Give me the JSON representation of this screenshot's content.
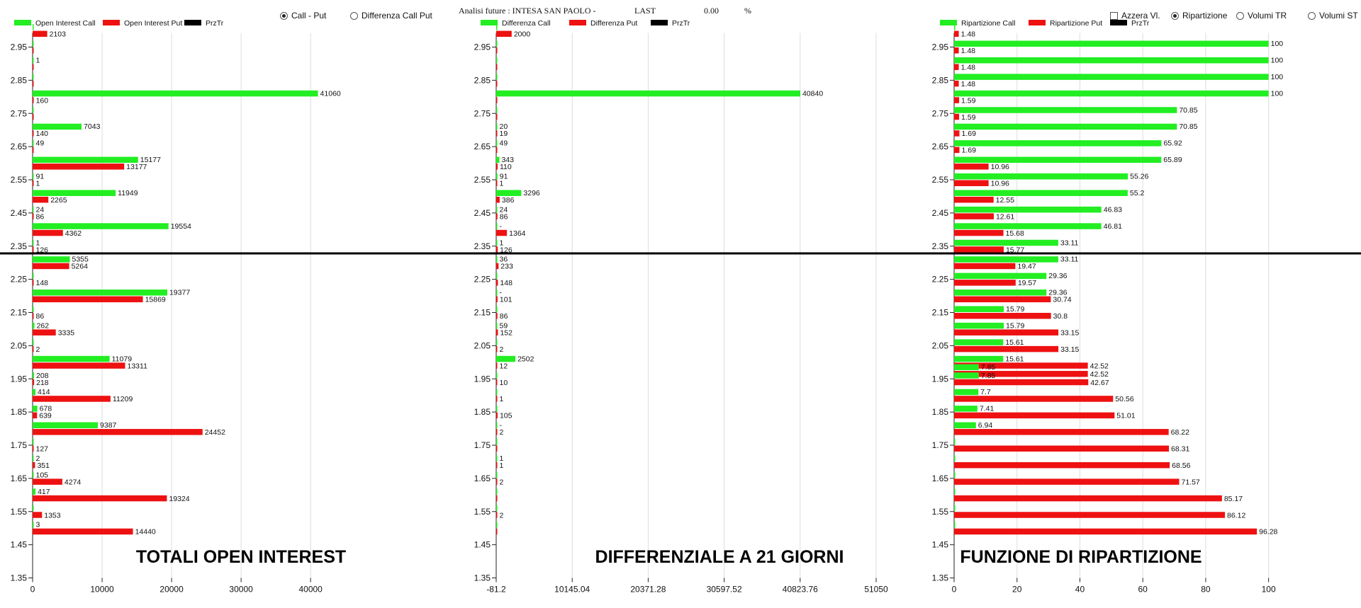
{
  "header": {
    "title": "Analisi future : INTESA SAN PAOLO -",
    "last_label": "LAST",
    "last_value": "0.00",
    "percent_sign": "%"
  },
  "controls": {
    "radio_call_put": "Call - Put",
    "radio_diff_call_put": "Differenza Call Put",
    "check_azzera": "Azzera Vl.",
    "radio_ripartizione": "Ripartizione",
    "radio_volumi_tr": "Volumi TR",
    "radio_volumi_st": "Volumi ST"
  },
  "colors": {
    "call": "#22ee22",
    "put": "#ee1111",
    "prz": "#000000",
    "grid": "#dddddd",
    "axis": "#222222",
    "divider": "#000000"
  },
  "chart_data": [
    {
      "type": "bar",
      "title": "TOTALI OPEN INTEREST",
      "orientation": "horizontal",
      "legend": [
        "Open Interest Call",
        "Open Interest Put",
        "PrzTr"
      ],
      "y_ticks": [
        "2.95",
        "2.85",
        "2.75",
        "2.65",
        "2.55",
        "2.45",
        "2.35",
        "2.25",
        "2.15",
        "2.05",
        "1.95",
        "1.85",
        "1.75",
        "1.65",
        "1.55",
        "1.45",
        "1.35"
      ],
      "x_ticks": [
        "0",
        "10000",
        "20000",
        "30000",
        "40000"
      ],
      "xlim": [
        0,
        51000
      ],
      "bars": [
        {
          "strike": 3.0,
          "call": 0,
          "put": 2103,
          "call_label": "",
          "put_label": "2103"
        },
        {
          "strike": 2.95,
          "call": 0,
          "put": 0,
          "call_label": "",
          "put_label": ""
        },
        {
          "strike": 2.9,
          "call": 1,
          "put": 0,
          "call_label": "1",
          "put_label": ""
        },
        {
          "strike": 2.85,
          "call": 0,
          "put": 0,
          "call_label": "",
          "put_label": ""
        },
        {
          "strike": 2.8,
          "call": 41060,
          "put": 160,
          "call_label": "41060",
          "put_label": "160"
        },
        {
          "strike": 2.75,
          "call": 0,
          "put": 0,
          "call_label": "",
          "put_label": ""
        },
        {
          "strike": 2.7,
          "call": 7043,
          "put": 140,
          "call_label": "7043",
          "put_label": "140"
        },
        {
          "strike": 2.65,
          "call": 49,
          "put": 0,
          "call_label": "49",
          "put_label": ""
        },
        {
          "strike": 2.6,
          "call": 15177,
          "put": 13177,
          "call_label": "15177",
          "put_label": "13177"
        },
        {
          "strike": 2.55,
          "call": 91,
          "put": 1,
          "call_label": "91",
          "put_label": "1"
        },
        {
          "strike": 2.5,
          "call": 11949,
          "put": 2265,
          "call_label": "11949",
          "put_label": "2265"
        },
        {
          "strike": 2.45,
          "call": 24,
          "put": 86,
          "call_label": "24",
          "put_label": "86"
        },
        {
          "strike": 2.4,
          "call": 19554,
          "put": 4362,
          "call_label": "19554",
          "put_label": "4362"
        },
        {
          "strike": 2.35,
          "call": 1,
          "put": 126,
          "call_label": "1",
          "put_label": "126"
        },
        {
          "strike": 2.3,
          "call": 5355,
          "put": 5264,
          "call_label": "5355",
          "put_label": "5264"
        },
        {
          "strike": 2.25,
          "call": 0,
          "put": 148,
          "call_label": "",
          "put_label": "148"
        },
        {
          "strike": 2.2,
          "call": 19377,
          "put": 15869,
          "call_label": "19377",
          "put_label": "15869"
        },
        {
          "strike": 2.15,
          "call": 0,
          "put": 86,
          "call_label": "",
          "put_label": "86"
        },
        {
          "strike": 2.1,
          "call": 262,
          "put": 3335,
          "call_label": "262",
          "put_label": "3335"
        },
        {
          "strike": 2.05,
          "call": 0,
          "put": 2,
          "call_label": "",
          "put_label": "2"
        },
        {
          "strike": 2.0,
          "call": 11079,
          "put": 13311,
          "call_label": "11079",
          "put_label": "13311"
        },
        {
          "strike": 1.95,
          "call": 208,
          "put": 218,
          "call_label": "208",
          "put_label": "218"
        },
        {
          "strike": 1.9,
          "call": 414,
          "put": 11209,
          "call_label": "414",
          "put_label": "11209"
        },
        {
          "strike": 1.85,
          "call": 678,
          "put": 639,
          "call_label": "678",
          "put_label": "639"
        },
        {
          "strike": 1.8,
          "call": 9387,
          "put": 24452,
          "call_label": "9387",
          "put_label": "24452"
        },
        {
          "strike": 1.75,
          "call": 0,
          "put": 127,
          "call_label": "",
          "put_label": "127"
        },
        {
          "strike": 1.7,
          "call": 2,
          "put": 351,
          "call_label": "2",
          "put_label": "351"
        },
        {
          "strike": 1.65,
          "call": 105,
          "put": 4274,
          "call_label": "105",
          "put_label": "4274"
        },
        {
          "strike": 1.6,
          "call": 417,
          "put": 19324,
          "call_label": "417",
          "put_label": "19324"
        },
        {
          "strike": 1.55,
          "call": 0,
          "put": 1353,
          "call_label": "",
          "put_label": "1353"
        },
        {
          "strike": 1.5,
          "call": 3,
          "put": 14440,
          "call_label": "3",
          "put_label": "14440"
        }
      ]
    },
    {
      "type": "bar",
      "title": "DIFFERENZIALE A 21 GIORNI",
      "orientation": "horizontal",
      "legend": [
        "Differenza Call",
        "Differenza Put",
        "PrzTr"
      ],
      "y_ticks": [
        "2.95",
        "2.85",
        "2.75",
        "2.65",
        "2.55",
        "2.45",
        "2.35",
        "2.25",
        "2.15",
        "2.05",
        "1.95",
        "1.85",
        "1.75",
        "1.65",
        "1.55",
        "1.45",
        "1.35"
      ],
      "x_ticks": [
        "-81.2",
        "10145.04",
        "20371.28",
        "30597.52",
        "40823.76",
        "51050"
      ],
      "xlim": [
        -81.2,
        51050
      ],
      "bars": [
        {
          "strike": 3.0,
          "call": 0,
          "put": 2000,
          "call_label": "",
          "put_label": "2000"
        },
        {
          "strike": 2.95,
          "call": 0,
          "put": 0,
          "call_label": "",
          "put_label": ""
        },
        {
          "strike": 2.9,
          "call": 0,
          "put": 0,
          "call_label": "",
          "put_label": ""
        },
        {
          "strike": 2.85,
          "call": 0,
          "put": 0,
          "call_label": "",
          "put_label": ""
        },
        {
          "strike": 2.8,
          "call": 40840,
          "put": 0,
          "call_label": "40840",
          "put_label": ""
        },
        {
          "strike": 2.75,
          "call": 0,
          "put": 0,
          "call_label": "",
          "put_label": ""
        },
        {
          "strike": 2.7,
          "call": 20,
          "put": 19,
          "call_label": "20",
          "put_label": "19"
        },
        {
          "strike": 2.65,
          "call": 49,
          "put": 0,
          "call_label": "49",
          "put_label": ""
        },
        {
          "strike": 2.6,
          "call": 343,
          "put": 110,
          "call_label": "343",
          "put_label": "110"
        },
        {
          "strike": 2.55,
          "call": 91,
          "put": 1,
          "call_label": "91",
          "put_label": "1"
        },
        {
          "strike": 2.5,
          "call": 3296,
          "put": 386,
          "call_label": "3296",
          "put_label": "386"
        },
        {
          "strike": 2.45,
          "call": 24,
          "put": 86,
          "call_label": "24",
          "put_label": "86"
        },
        {
          "strike": 2.4,
          "call": 0,
          "put": 1364,
          "call_label": "-",
          "put_label": "1364"
        },
        {
          "strike": 2.35,
          "call": 1,
          "put": 126,
          "call_label": "1",
          "put_label": "126"
        },
        {
          "strike": 2.3,
          "call": 36,
          "put": 233,
          "call_label": "36",
          "put_label": "233"
        },
        {
          "strike": 2.25,
          "call": 0,
          "put": 148,
          "call_label": "",
          "put_label": "148"
        },
        {
          "strike": 2.2,
          "call": 0,
          "put": 101,
          "call_label": "-",
          "put_label": "101"
        },
        {
          "strike": 2.15,
          "call": 0,
          "put": 86,
          "call_label": "",
          "put_label": "86"
        },
        {
          "strike": 2.1,
          "call": 59,
          "put": 152,
          "call_label": "59",
          "put_label": "152"
        },
        {
          "strike": 2.05,
          "call": 0,
          "put": 2,
          "call_label": "",
          "put_label": "2"
        },
        {
          "strike": 2.0,
          "call": 2502,
          "put": 12,
          "call_label": "2502",
          "put_label": "12"
        },
        {
          "strike": 1.95,
          "call": 0,
          "put": 10,
          "call_label": "",
          "put_label": "10"
        },
        {
          "strike": 1.9,
          "call": 0,
          "put": 1,
          "call_label": "",
          "put_label": "1"
        },
        {
          "strike": 1.85,
          "call": 0,
          "put": 105,
          "call_label": "",
          "put_label": "105"
        },
        {
          "strike": 1.8,
          "call": 0,
          "put": 2,
          "call_label": "-",
          "put_label": "2"
        },
        {
          "strike": 1.75,
          "call": 0,
          "put": 0,
          "call_label": "",
          "put_label": ""
        },
        {
          "strike": 1.7,
          "call": 1,
          "put": 1,
          "call_label": "1",
          "put_label": "1"
        },
        {
          "strike": 1.65,
          "call": 0,
          "put": 2,
          "call_label": "",
          "put_label": "2"
        },
        {
          "strike": 1.6,
          "call": 0,
          "put": 0,
          "call_label": "",
          "put_label": ""
        },
        {
          "strike": 1.55,
          "call": 0,
          "put": 2,
          "call_label": "",
          "put_label": "2"
        },
        {
          "strike": 1.5,
          "call": 0,
          "put": 0,
          "call_label": "",
          "put_label": ""
        }
      ]
    },
    {
      "type": "bar",
      "title": "FUNZIONE DI RIPARTIZIONE",
      "orientation": "horizontal",
      "legend": [
        "Ripartizione Call",
        "Ripartizione Put",
        "PrzTr"
      ],
      "y_ticks": [
        "2.95",
        "2.85",
        "2.75",
        "2.65",
        "2.55",
        "2.45",
        "2.35",
        "2.25",
        "2.15",
        "2.05",
        "1.95",
        "1.85",
        "1.75",
        "1.65",
        "1.55",
        "1.45",
        "1.35"
      ],
      "x_ticks": [
        "0",
        "20",
        "40",
        "60",
        "80",
        "100"
      ],
      "xlim": [
        0,
        110
      ],
      "bars": [
        {
          "strike": 3.0,
          "call": 0,
          "put": 1.48,
          "call_label": "",
          "put_label": "1.48"
        },
        {
          "strike": 2.95,
          "call": 100,
          "put": 1.48,
          "call_label": "100",
          "put_label": "1.48"
        },
        {
          "strike": 2.9,
          "call": 100,
          "put": 1.48,
          "call_label": "100",
          "put_label": "1.48"
        },
        {
          "strike": 2.85,
          "call": 100,
          "put": 1.48,
          "call_label": "100",
          "put_label": "1.48"
        },
        {
          "strike": 2.8,
          "call": 100,
          "put": 1.59,
          "call_label": "100",
          "put_label": "1.59"
        },
        {
          "strike": 2.75,
          "call": 70.85,
          "put": 1.59,
          "call_label": "70.85",
          "put_label": "1.59"
        },
        {
          "strike": 2.7,
          "call": 70.85,
          "put": 1.69,
          "call_label": "70.85",
          "put_label": "1.69"
        },
        {
          "strike": 2.65,
          "call": 65.92,
          "put": 1.69,
          "call_label": "65.92",
          "put_label": "1.69"
        },
        {
          "strike": 2.6,
          "call": 65.89,
          "put": 10.96,
          "call_label": "65.89",
          "put_label": "10.96"
        },
        {
          "strike": 2.55,
          "call": 55.26,
          "put": 10.96,
          "call_label": "55.26",
          "put_label": "10.96"
        },
        {
          "strike": 2.5,
          "call": 55.2,
          "put": 12.55,
          "call_label": "55.2",
          "put_label": "12.55"
        },
        {
          "strike": 2.45,
          "call": 46.83,
          "put": 12.61,
          "call_label": "46.83",
          "put_label": "12.61"
        },
        {
          "strike": 2.4,
          "call": 46.81,
          "put": 15.68,
          "call_label": "46.81",
          "put_label": "15.68"
        },
        {
          "strike": 2.35,
          "call": 33.11,
          "put": 15.77,
          "call_label": "33.11",
          "put_label": "15.77"
        },
        {
          "strike": 2.3,
          "call": 33.11,
          "put": 19.47,
          "call_label": "33.11",
          "put_label": "19.47"
        },
        {
          "strike": 2.25,
          "call": 29.36,
          "put": 19.57,
          "call_label": "29.36",
          "put_label": "19.57"
        },
        {
          "strike": 2.2,
          "call": 29.36,
          "put": 30.74,
          "call_label": "29.36",
          "put_label": "30.74"
        },
        {
          "strike": 2.15,
          "call": 15.79,
          "put": 30.8,
          "call_label": "15.79",
          "put_label": "30.8"
        },
        {
          "strike": 2.1,
          "call": 15.79,
          "put": 33.15,
          "call_label": "15.79",
          "put_label": "33.15"
        },
        {
          "strike": 2.05,
          "call": 15.61,
          "put": 33.15,
          "call_label": "15.61",
          "put_label": "33.15"
        },
        {
          "strike": 2.0,
          "call": 15.61,
          "put": 42.52,
          "call_label": "15.61",
          "put_label": "42.52"
        },
        {
          "strike": 1.975,
          "call": 7.85,
          "put": 42.52,
          "call_label": "7.85",
          "put_label": "42.52"
        },
        {
          "strike": 1.95,
          "call": 7.85,
          "put": 42.67,
          "call_label": "7.85",
          "put_label": "42.67"
        },
        {
          "strike": 1.9,
          "call": 7.7,
          "put": 50.56,
          "call_label": "7.7",
          "put_label": "50.56"
        },
        {
          "strike": 1.85,
          "call": 7.41,
          "put": 51.01,
          "call_label": "7.41",
          "put_label": "51.01"
        },
        {
          "strike": 1.8,
          "call": 6.94,
          "put": 68.22,
          "call_label": "6.94",
          "put_label": "68.22"
        },
        {
          "strike": 1.75,
          "call": 0,
          "put": 68.31,
          "call_label": "",
          "put_label": "68.31"
        },
        {
          "strike": 1.7,
          "call": 0,
          "put": 68.56,
          "call_label": "",
          "put_label": "68.56"
        },
        {
          "strike": 1.65,
          "call": 0,
          "put": 71.57,
          "call_label": "",
          "put_label": "71.57"
        },
        {
          "strike": 1.6,
          "call": 0,
          "put": 85.17,
          "call_label": "",
          "put_label": "85.17"
        },
        {
          "strike": 1.55,
          "call": 0,
          "put": 86.12,
          "call_label": "",
          "put_label": "86.12"
        },
        {
          "strike": 1.5,
          "call": 0,
          "put": 96.28,
          "call_label": "",
          "put_label": "96.28"
        }
      ]
    }
  ]
}
